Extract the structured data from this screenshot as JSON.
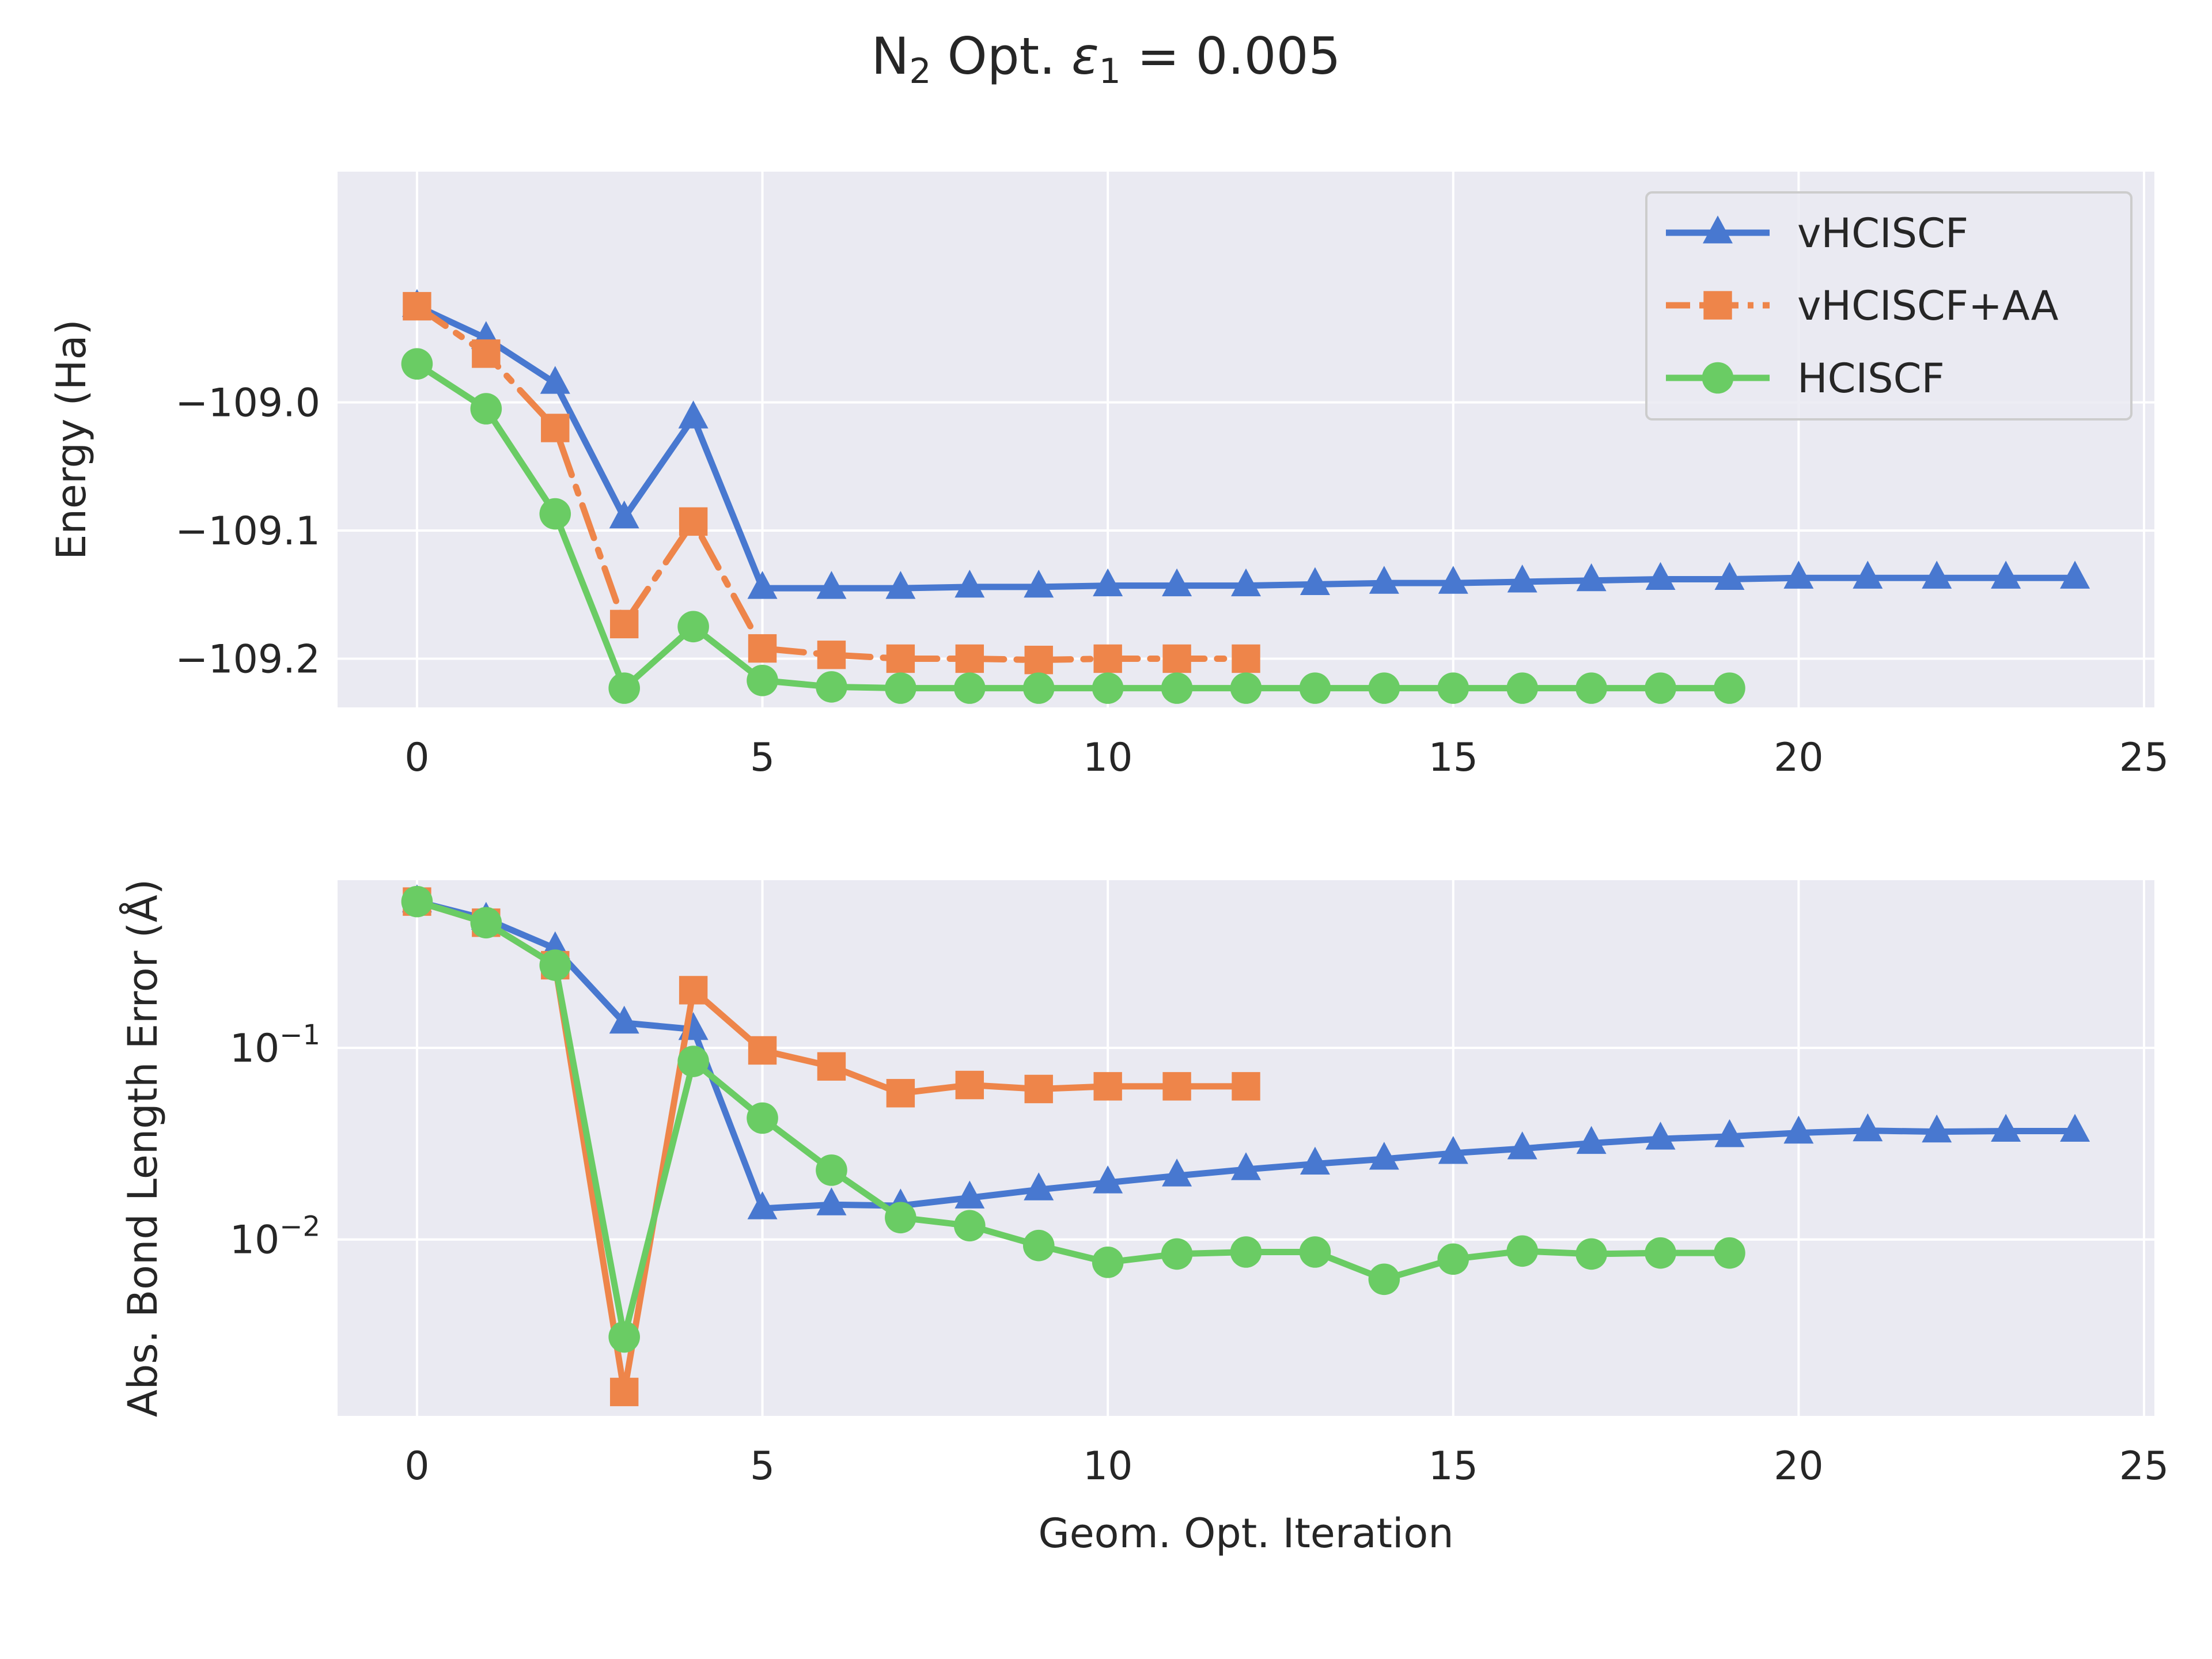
{
  "figure_title": {
    "prefix": "N",
    "subscript": "2",
    "middle": " Opt. ",
    "epsilon": "ε",
    "epsilon_sub": "1",
    "suffix": " = 0.005"
  },
  "colors": {
    "plot_background": "#eaeaf2",
    "grid": "#ffffff",
    "text": "#262626",
    "vHCISCF": "#4878d0",
    "vHCISCF+AA": "#ee854a",
    "HCISCF": "#6acc64"
  },
  "chart_data": [
    {
      "type": "line",
      "ylabel": "Energy (Ha)",
      "xlabel": "",
      "xlim": [
        -1.15,
        25.15
      ],
      "ylim": [
        -109.238,
        -108.82
      ],
      "x_ticks": [
        0,
        5,
        10,
        15,
        20,
        25
      ],
      "x_tick_labels": [
        "0",
        "5",
        "10",
        "15",
        "20",
        "25"
      ],
      "y_ticks": [
        -109.0,
        -109.1,
        -109.2
      ],
      "y_tick_labels": [
        "−109.0",
        "−109.1",
        "−109.2"
      ],
      "y_scale": "linear",
      "grid": true,
      "legend": {
        "position": "top-right",
        "entries": [
          "vHCISCF",
          "vHCISCF+AA",
          "HCISCF"
        ]
      },
      "series": [
        {
          "name": "vHCISCF",
          "marker": "triangle",
          "linestyle": "solid",
          "x": [
            0,
            1,
            2,
            3,
            4,
            5,
            6,
            7,
            8,
            9,
            10,
            11,
            12,
            13,
            14,
            15,
            16,
            17,
            18,
            19,
            20,
            21,
            22,
            23,
            24
          ],
          "y": [
            -108.925,
            -108.95,
            -108.985,
            -109.09,
            -109.012,
            -109.145,
            -109.145,
            -109.145,
            -109.144,
            -109.144,
            -109.143,
            -109.143,
            -109.143,
            -109.142,
            -109.141,
            -109.141,
            -109.14,
            -109.139,
            -109.138,
            -109.138,
            -109.137,
            -109.137,
            -109.137,
            -109.137,
            -109.137
          ]
        },
        {
          "name": "vHCISCF+AA",
          "marker": "square",
          "linestyle": "dashdot",
          "x": [
            0,
            1,
            2,
            3,
            4,
            5,
            6,
            7,
            8,
            9,
            10,
            11,
            12
          ],
          "y": [
            -108.925,
            -108.962,
            -109.02,
            -109.173,
            -109.093,
            -109.192,
            -109.197,
            -109.2,
            -109.2,
            -109.201,
            -109.2,
            -109.2,
            -109.2
          ]
        },
        {
          "name": "HCISCF",
          "marker": "circle",
          "linestyle": "solid",
          "x": [
            0,
            1,
            2,
            3,
            4,
            5,
            6,
            7,
            8,
            9,
            10,
            11,
            12,
            13,
            14,
            15,
            16,
            17,
            18,
            19
          ],
          "y": [
            -108.97,
            -109.005,
            -109.087,
            -109.223,
            -109.175,
            -109.217,
            -109.222,
            -109.223,
            -109.223,
            -109.223,
            -109.223,
            -109.223,
            -109.223,
            -109.223,
            -109.223,
            -109.223,
            -109.223,
            -109.223,
            -109.223,
            -109.223
          ]
        }
      ]
    },
    {
      "type": "line",
      "ylabel": "Abs. Bond Length Error (Å)",
      "xlabel": "Geom. Opt. Iteration",
      "xlim": [
        -1.15,
        25.15
      ],
      "ylim": [
        0.0012,
        0.75
      ],
      "x_ticks": [
        0,
        5,
        10,
        15,
        20,
        25
      ],
      "x_tick_labels": [
        "0",
        "5",
        "10",
        "15",
        "20",
        "25"
      ],
      "y_ticks": [
        0.1,
        0.01
      ],
      "y_tick_labels": [
        {
          "base": "10",
          "exp": "−1"
        },
        {
          "base": "10",
          "exp": "−2"
        }
      ],
      "y_scale": "log",
      "grid": true,
      "series": [
        {
          "name": "vHCISCF",
          "marker": "triangle",
          "linestyle": "solid",
          "x": [
            0,
            1,
            2,
            3,
            4,
            5,
            6,
            7,
            8,
            9,
            10,
            11,
            12,
            13,
            14,
            15,
            16,
            17,
            18,
            19,
            20,
            21,
            22,
            23,
            24
          ],
          "y": [
            0.58,
            0.47,
            0.33,
            0.135,
            0.125,
            0.0145,
            0.0152,
            0.015,
            0.0165,
            0.0182,
            0.0198,
            0.0215,
            0.0232,
            0.0248,
            0.0263,
            0.0282,
            0.0298,
            0.0318,
            0.0335,
            0.0345,
            0.036,
            0.037,
            0.0365,
            0.0368,
            0.0368
          ]
        },
        {
          "name": "vHCISCF+AA",
          "marker": "square",
          "linestyle": "solid",
          "x": [
            0,
            1,
            2,
            3,
            4,
            5,
            6,
            7,
            8,
            9,
            10,
            11,
            12
          ],
          "y": [
            0.58,
            0.45,
            0.27,
            0.0016,
            0.2,
            0.097,
            0.08,
            0.058,
            0.064,
            0.061,
            0.063,
            0.063,
            0.063
          ]
        },
        {
          "name": "HCISCF",
          "marker": "circle",
          "linestyle": "solid",
          "x": [
            0,
            1,
            2,
            3,
            4,
            5,
            6,
            7,
            8,
            9,
            10,
            11,
            12,
            13,
            14,
            15,
            16,
            17,
            18,
            19
          ],
          "y": [
            0.58,
            0.45,
            0.27,
            0.0031,
            0.085,
            0.043,
            0.023,
            0.013,
            0.0118,
            0.0093,
            0.0076,
            0.0084,
            0.0086,
            0.0086,
            0.0062,
            0.0079,
            0.0087,
            0.0084,
            0.0085,
            0.0085
          ]
        }
      ]
    }
  ]
}
